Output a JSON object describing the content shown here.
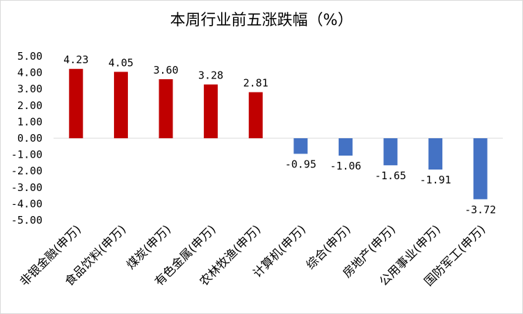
{
  "chart_data": {
    "type": "bar",
    "title": "本周行业前五涨跌幅（%）",
    "xlabel": "",
    "ylabel": "",
    "ylim": [
      -5,
      5
    ],
    "y_ticks": [
      "5.00",
      "4.00",
      "3.00",
      "2.00",
      "1.00",
      "0.00",
      "-1.00",
      "-2.00",
      "-3.00",
      "-4.00",
      "-5.00"
    ],
    "categories": [
      "非银金融(申万)",
      "食品饮料(申万)",
      "煤炭(申万)",
      "有色金属(申万)",
      "农林牧渔(申万)",
      "计算机(申万)",
      "综合(申万)",
      "房地产(申万)",
      "公用事业(申万)",
      "国防军工(申万)"
    ],
    "values": [
      4.23,
      4.05,
      3.6,
      3.28,
      2.81,
      -0.95,
      -1.06,
      -1.65,
      -1.91,
      -3.72
    ],
    "data_labels": [
      "4.23",
      "4.05",
      "3.60",
      "3.28",
      "2.81",
      "-0.95",
      "-1.06",
      "-1.65",
      "-1.91",
      "-3.72"
    ],
    "colors": {
      "positive": "#c00000",
      "negative": "#4472c4"
    },
    "grid": false,
    "legend": "none"
  }
}
